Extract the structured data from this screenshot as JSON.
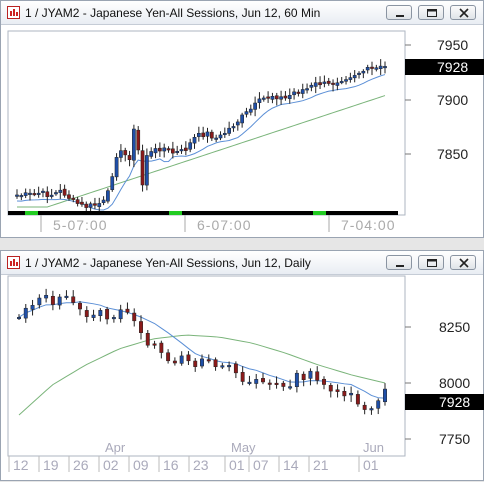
{
  "charts": [
    {
      "window_title": "1 / JYAM2 - Japanese Yen-All Sessions, Jun 12, 60 Min",
      "price_ticks": [
        "7950",
        "7900",
        "7850"
      ],
      "last_price": "7928",
      "time_labels": [
        "5-07:00",
        "6-07:00",
        "7-04:00"
      ]
    },
    {
      "window_title": "1 / JYAM2 - Japanese Yen-All Sessions, Jun 12, Daily",
      "price_ticks": [
        "8250",
        "8000",
        "7750"
      ],
      "last_price": "7928",
      "month_labels": [
        "Apr",
        "May",
        "Jun"
      ],
      "date_labels": [
        "12",
        "19",
        "26",
        "02",
        "09",
        "16",
        "23",
        "01",
        "07",
        "14",
        "21",
        "01"
      ]
    }
  ],
  "colors": {
    "up_candle": "#1f4fa8",
    "down_candle": "#8a1a1a",
    "fast_ma": "#5b8fd6",
    "slow_ma": "#7ab47a",
    "last_price_bg": "#000000",
    "session_marker": "#22cc22"
  },
  "icons": [
    "chart-app-icon",
    "minimize-icon",
    "maximize-icon",
    "close-icon"
  ]
}
